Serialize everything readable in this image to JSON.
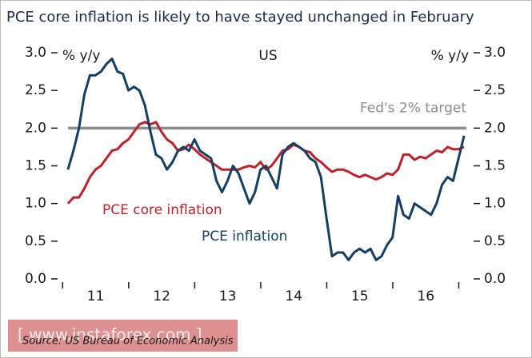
{
  "chart_data": {
    "type": "line",
    "title": "PCE core inflation is likely to have stayed unchanged in February",
    "subtitle": "US",
    "y_label": "% y/y",
    "y2_label": "% y/y",
    "source": "Source: US Bureau of Economic Analysis",
    "watermark": "[ www.instaforex.com ]",
    "x": [
      2011.08,
      2011.163,
      2011.247,
      2011.33,
      2011.413,
      2011.497,
      2011.58,
      2011.663,
      2011.747,
      2011.83,
      2011.913,
      2011.997,
      2012.08,
      2012.163,
      2012.247,
      2012.33,
      2012.413,
      2012.497,
      2012.58,
      2012.663,
      2012.747,
      2012.83,
      2012.913,
      2012.997,
      2013.08,
      2013.163,
      2013.247,
      2013.33,
      2013.413,
      2013.497,
      2013.58,
      2013.663,
      2013.747,
      2013.83,
      2013.913,
      2013.997,
      2014.08,
      2014.163,
      2014.247,
      2014.33,
      2014.413,
      2014.497,
      2014.58,
      2014.663,
      2014.747,
      2014.83,
      2014.913,
      2014.997,
      2015.08,
      2015.163,
      2015.247,
      2015.33,
      2015.413,
      2015.497,
      2015.58,
      2015.663,
      2015.747,
      2015.83,
      2015.913,
      2015.997,
      2016.08,
      2016.163,
      2016.247,
      2016.33,
      2016.413,
      2016.497,
      2016.58,
      2016.663,
      2016.747,
      2016.83,
      2016.913,
      2016.997,
      2017.08
    ],
    "series": [
      {
        "name": "PCE core inflation",
        "color": "#c0202a",
        "values": [
          1.0,
          1.08,
          1.08,
          1.2,
          1.35,
          1.45,
          1.5,
          1.6,
          1.7,
          1.72,
          1.8,
          1.85,
          1.95,
          2.05,
          2.08,
          2.05,
          2.08,
          1.95,
          1.85,
          1.8,
          1.7,
          1.72,
          1.78,
          1.72,
          1.65,
          1.6,
          1.55,
          1.5,
          1.45,
          1.45,
          1.45,
          1.45,
          1.48,
          1.5,
          1.48,
          1.55,
          1.45,
          1.5,
          1.6,
          1.7,
          1.72,
          1.78,
          1.75,
          1.7,
          1.68,
          1.6,
          1.55,
          1.48,
          1.42,
          1.45,
          1.45,
          1.42,
          1.38,
          1.35,
          1.38,
          1.35,
          1.32,
          1.35,
          1.4,
          1.38,
          1.45,
          1.65,
          1.65,
          1.58,
          1.62,
          1.6,
          1.65,
          1.7,
          1.68,
          1.75,
          1.72,
          1.72,
          1.75
        ]
      },
      {
        "name": "PCE inflation",
        "color": "#123f63",
        "values": [
          1.45,
          1.7,
          2.0,
          2.45,
          2.7,
          2.7,
          2.75,
          2.85,
          2.92,
          2.75,
          2.72,
          2.5,
          2.55,
          2.5,
          2.3,
          1.95,
          1.65,
          1.6,
          1.45,
          1.55,
          1.7,
          1.75,
          1.7,
          1.85,
          1.7,
          1.65,
          1.6,
          1.3,
          1.15,
          1.3,
          1.5,
          1.4,
          1.2,
          1.0,
          1.15,
          1.45,
          1.5,
          1.35,
          1.2,
          1.65,
          1.75,
          1.8,
          1.75,
          1.7,
          1.6,
          1.55,
          1.35,
          0.8,
          0.3,
          0.35,
          0.35,
          0.25,
          0.35,
          0.4,
          0.35,
          0.4,
          0.25,
          0.3,
          0.45,
          0.55,
          1.1,
          0.85,
          0.8,
          1.0,
          0.95,
          0.9,
          0.85,
          1.0,
          1.25,
          1.35,
          1.3,
          1.6,
          1.9
        ]
      }
    ],
    "target": {
      "label": "Fed's 2% target",
      "value": 2.0,
      "color": "#8c8c8c"
    },
    "xlim": [
      2010.96,
      2017.2
    ],
    "xticks": [
      {
        "value": 2011.5,
        "label": "11"
      },
      {
        "value": 2012.5,
        "label": "12"
      },
      {
        "value": 2013.5,
        "label": "13"
      },
      {
        "value": 2014.5,
        "label": "14"
      },
      {
        "value": 2015.5,
        "label": "15"
      },
      {
        "value": 2016.5,
        "label": "16"
      }
    ],
    "xminorticks": [
      2011,
      2012,
      2013,
      2014,
      2015,
      2016,
      2017
    ],
    "ylim": [
      0,
      3
    ],
    "yticks": [
      {
        "value": 0,
        "label": "0.0"
      },
      {
        "value": 0.5,
        "label": "0.5"
      },
      {
        "value": 1,
        "label": "1.0"
      },
      {
        "value": 1.5,
        "label": "1.5"
      },
      {
        "value": 2,
        "label": "2.0"
      },
      {
        "value": 2.5,
        "label": "2.5"
      },
      {
        "value": 3,
        "label": "3.0"
      }
    ],
    "y2lim": [
      0,
      3
    ],
    "y2ticks": [
      {
        "value": 0,
        "label": "0.0"
      },
      {
        "value": 0.5,
        "label": "0.5"
      },
      {
        "value": 1,
        "label": "1.0"
      },
      {
        "value": 1.5,
        "label": "1.5"
      },
      {
        "value": 2,
        "label": "2.0"
      },
      {
        "value": 2.5,
        "label": "2.5"
      },
      {
        "value": 3,
        "label": "3.0"
      }
    ]
  }
}
